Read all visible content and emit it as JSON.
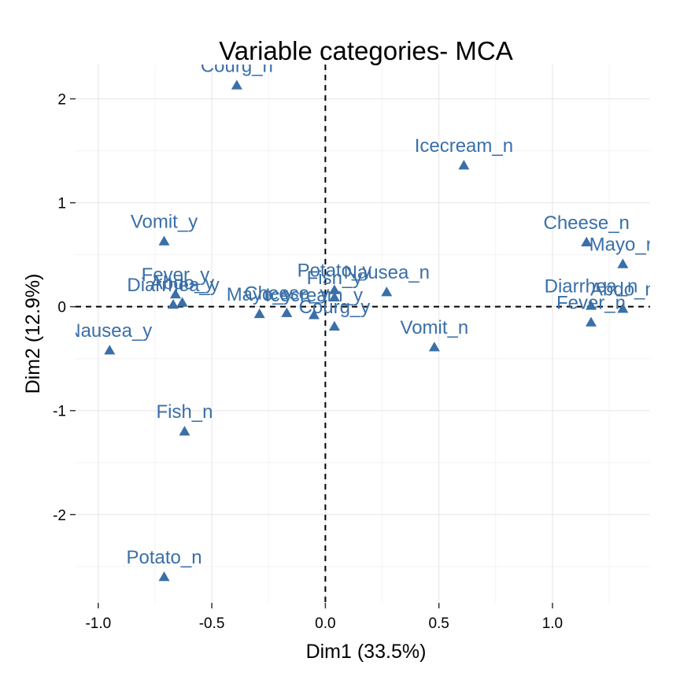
{
  "chart_data": {
    "type": "scatter",
    "title": "Variable categories- MCA",
    "xlabel": "Dim1 (33.5%)",
    "ylabel": "Dim2 (12.9%)",
    "xlim": [
      -1.1,
      1.43
    ],
    "ylim": [
      -2.85,
      2.33
    ],
    "x_ticks": [
      -1.0,
      -0.5,
      0.0,
      0.5,
      1.0
    ],
    "x_tick_labels": [
      "-1.0",
      "-0.5",
      "0.0",
      "0.5",
      "1.0"
    ],
    "y_ticks": [
      -2,
      -1,
      0,
      1,
      2
    ],
    "y_tick_labels": [
      "-2",
      "-1",
      "0",
      "1",
      "2"
    ],
    "reference_lines": {
      "x": 0,
      "y": 0
    },
    "grid": true,
    "marker": "triangle",
    "color": "#3a6fa8",
    "points": [
      {
        "label": "Courg_n",
        "x": -0.39,
        "y": 2.13
      },
      {
        "label": "Icecream_n",
        "x": 0.61,
        "y": 1.36
      },
      {
        "label": "Vomit_y",
        "x": -0.71,
        "y": 0.63
      },
      {
        "label": "Cheese_n",
        "x": 1.15,
        "y": 0.62
      },
      {
        "label": "Mayo_n",
        "x": 1.31,
        "y": 0.41
      },
      {
        "label": "Potato_y",
        "x": 0.04,
        "y": 0.16
      },
      {
        "label": "Nausea_n",
        "x": 0.27,
        "y": 0.14
      },
      {
        "label": "Fish_y",
        "x": 0.04,
        "y": 0.09
      },
      {
        "label": "Fever_y",
        "x": -0.66,
        "y": 0.12
      },
      {
        "label": "Abdo_y",
        "x": -0.63,
        "y": 0.04
      },
      {
        "label": "Diarrhea_y",
        "x": -0.67,
        "y": 0.02
      },
      {
        "label": "Mayo_y",
        "x": -0.29,
        "y": -0.07
      },
      {
        "label": "Cheese_y",
        "x": -0.17,
        "y": -0.06
      },
      {
        "label": "Icecream_y",
        "x": -0.05,
        "y": -0.08
      },
      {
        "label": "Courg_y",
        "x": 0.04,
        "y": -0.19
      },
      {
        "label": "Diarrhea_n",
        "x": 1.17,
        "y": 0.01
      },
      {
        "label": "Abdo_n",
        "x": 1.31,
        "y": -0.02
      },
      {
        "label": "Fever_n",
        "x": 1.17,
        "y": -0.15
      },
      {
        "label": "Vomit_n",
        "x": 0.48,
        "y": -0.39
      },
      {
        "label": "Nausea_y",
        "x": -0.95,
        "y": -0.42
      },
      {
        "label": "Fish_n",
        "x": -0.62,
        "y": -1.2
      },
      {
        "label": "Potato_n",
        "x": -0.71,
        "y": -2.6
      }
    ]
  }
}
